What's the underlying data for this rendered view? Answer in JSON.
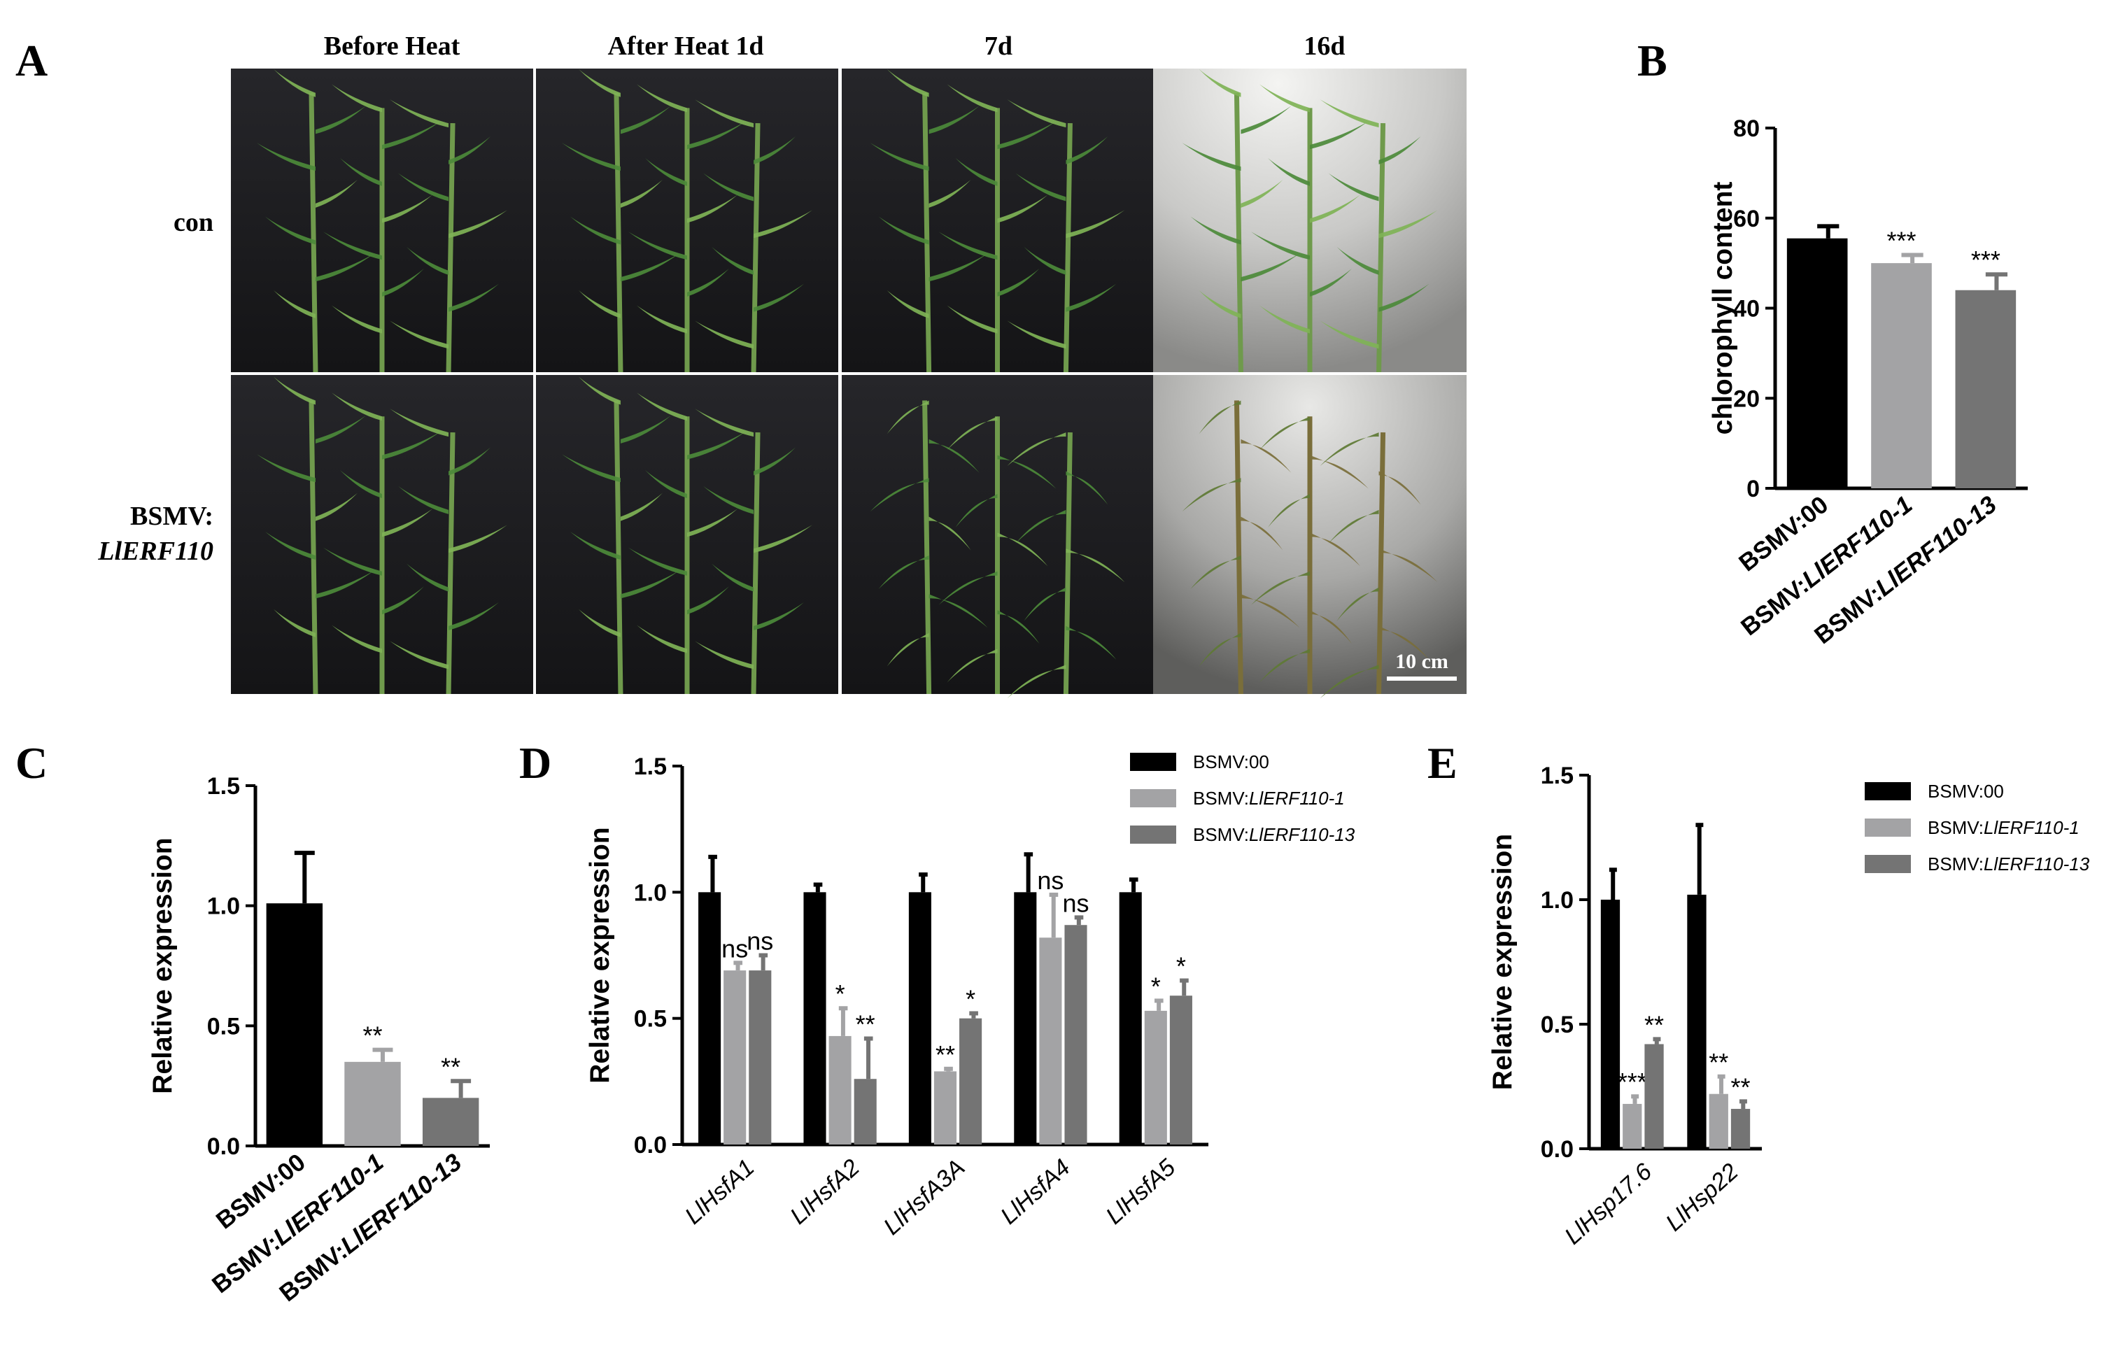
{
  "figure_labels": {
    "A": "A",
    "B": "B",
    "C": "C",
    "D": "D",
    "E": "E"
  },
  "panel_a": {
    "column_headers": [
      "Before Heat",
      "After Heat 1d",
      "7d",
      "16d"
    ],
    "row_labels": {
      "con": "con",
      "bsmv_line1": "BSMV:",
      "bsmv_line2": "LlERF110"
    },
    "scale_bar": "10 cm",
    "colors": {
      "dark_background": "#1c1c1f",
      "bright_background": "#d2d2d0",
      "plant_green": "#4c8a3a",
      "wilted": "#7a6e3a"
    }
  },
  "colors": {
    "bsmv00": "#000000",
    "erf110_1": "#a3a3a5",
    "erf110_13": "#747474"
  },
  "chart_data": [
    {
      "panel": "B",
      "type": "bar",
      "ylabel": "chlorophyll content",
      "ylim": [
        0,
        80
      ],
      "yticks": [
        0,
        20,
        40,
        60,
        80
      ],
      "categories": [
        {
          "prefix": "BSMV:",
          "main": "00"
        },
        {
          "prefix": "BSMV:",
          "main": "LlERF110-1"
        },
        {
          "prefix": "BSMV:",
          "main": "LlERF110-13"
        }
      ],
      "values": [
        55.5,
        50,
        44
      ],
      "errors": [
        2.7,
        1.8,
        3.5
      ],
      "significance": [
        "",
        "***",
        "***"
      ]
    },
    {
      "panel": "C",
      "type": "bar",
      "ylabel": "Relative expression",
      "ylim": [
        0,
        1.5
      ],
      "yticks": [
        "0.0",
        "0.5",
        "1.0",
        "1.5"
      ],
      "categories": [
        {
          "prefix": "BSMV:",
          "main": "00"
        },
        {
          "prefix": "BSMV:",
          "main": "LlERF110-1"
        },
        {
          "prefix": "BSMV:",
          "main": "LlERF110-13"
        }
      ],
      "values": [
        1.01,
        0.35,
        0.2
      ],
      "errors": [
        0.21,
        0.05,
        0.07
      ],
      "significance": [
        "",
        "**",
        "**"
      ]
    },
    {
      "panel": "D",
      "type": "bar",
      "ylabel": "Relative expression",
      "ylim": [
        0,
        1.5
      ],
      "yticks": [
        "0.0",
        "0.5",
        "1.0",
        "1.5"
      ],
      "categories": [
        "LlHsfA1",
        "LlHsfA2",
        "LlHsfA3A",
        "LlHsfA4",
        "LlHsfA5"
      ],
      "series": [
        {
          "name_prefix": "BSMV:",
          "name_main": "00",
          "values": [
            1.0,
            1.0,
            1.0,
            1.0,
            1.0
          ],
          "errors": [
            0.14,
            0.03,
            0.07,
            0.15,
            0.05
          ],
          "significance": [
            "",
            "",
            "",
            "",
            ""
          ]
        },
        {
          "name_prefix": "BSMV:",
          "name_main": "LlERF110-1",
          "values": [
            0.69,
            0.43,
            0.29,
            0.82,
            0.53
          ],
          "errors": [
            0.03,
            0.11,
            0.01,
            0.17,
            0.04
          ],
          "significance": [
            "ns",
            "*",
            "**",
            "ns",
            "*"
          ]
        },
        {
          "name_prefix": "BSMV:",
          "name_main": "LlERF110-13",
          "values": [
            0.69,
            0.26,
            0.5,
            0.87,
            0.59
          ],
          "errors": [
            0.06,
            0.16,
            0.02,
            0.03,
            0.06
          ],
          "significance": [
            "ns",
            "**",
            "*",
            "ns",
            "*"
          ]
        }
      ]
    },
    {
      "panel": "E",
      "type": "bar",
      "ylabel": "Relative expression",
      "ylim": [
        0,
        1.5
      ],
      "yticks": [
        "0.0",
        "0.5",
        "1.0",
        "1.5"
      ],
      "categories": [
        "LlHsp17.6",
        "LlHsp22"
      ],
      "series": [
        {
          "name_prefix": "BSMV:",
          "name_main": "00",
          "values": [
            1.0,
            1.02
          ],
          "errors": [
            0.12,
            0.28
          ],
          "significance": [
            "",
            ""
          ]
        },
        {
          "name_prefix": "BSMV:",
          "name_main": "LlERF110-1",
          "values": [
            0.18,
            0.22
          ],
          "errors": [
            0.03,
            0.07
          ],
          "significance": [
            "***",
            "**"
          ]
        },
        {
          "name_prefix": "BSMV:",
          "name_main": "LlERF110-13",
          "values": [
            0.42,
            0.16
          ],
          "errors": [
            0.02,
            0.03
          ],
          "significance": [
            "**",
            "**"
          ]
        }
      ]
    }
  ]
}
